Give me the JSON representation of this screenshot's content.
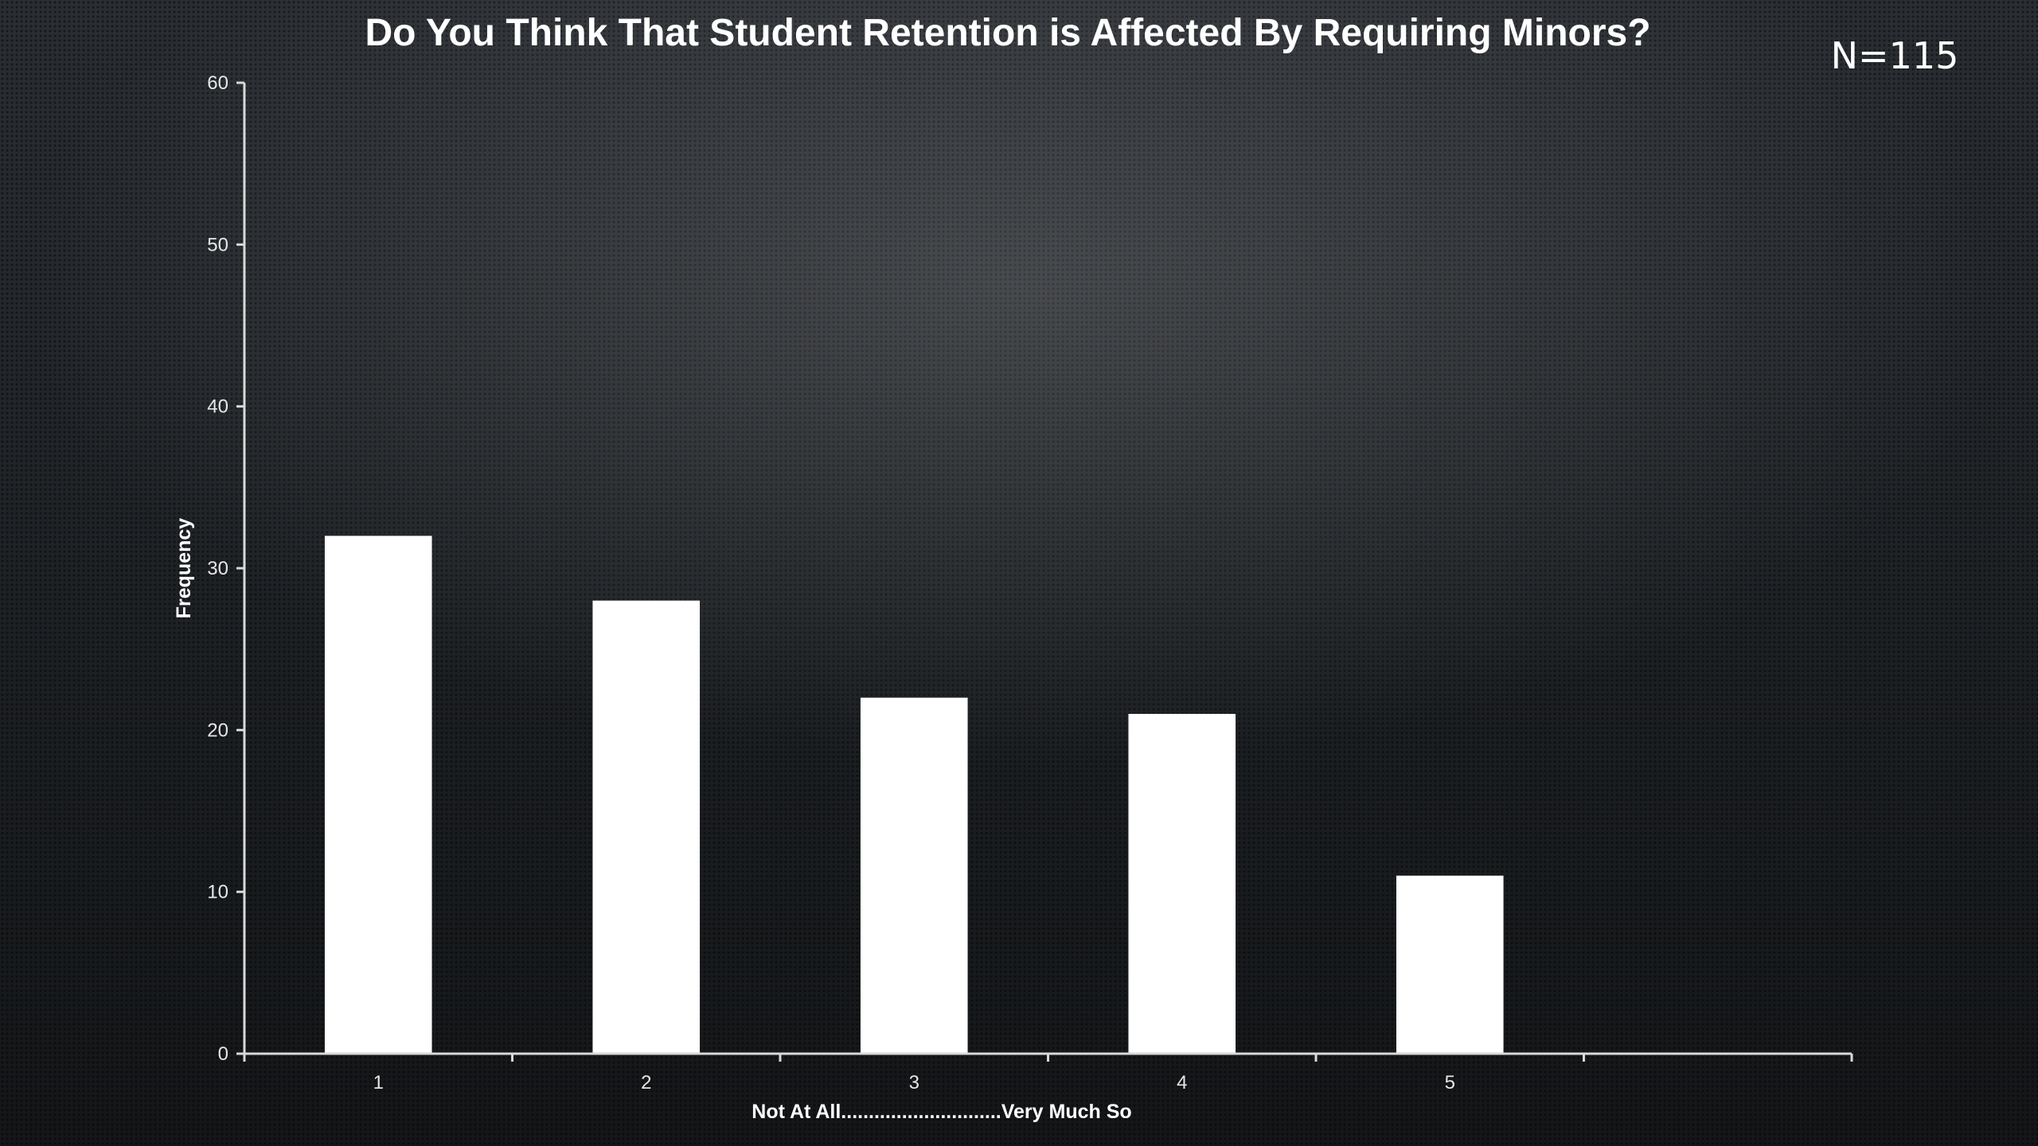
{
  "slide": {
    "sample_size": "N=115"
  },
  "chart_data": {
    "type": "bar",
    "title": "Do You Think That Student Retention is Affected By Requiring Minors?",
    "xlabel": "Not At All.............................Very Much So",
    "ylabel": "Frequency",
    "categories": [
      "1",
      "2",
      "3",
      "4",
      "5",
      ""
    ],
    "values": [
      32,
      28,
      22,
      21,
      11,
      null
    ],
    "yticks": [
      0,
      10,
      20,
      30,
      40,
      50,
      60
    ],
    "ylim": [
      0,
      60
    ],
    "grid": false,
    "legend": "none",
    "colors": {
      "bar": "#ffffff",
      "axis": "#d9d9d9"
    }
  }
}
